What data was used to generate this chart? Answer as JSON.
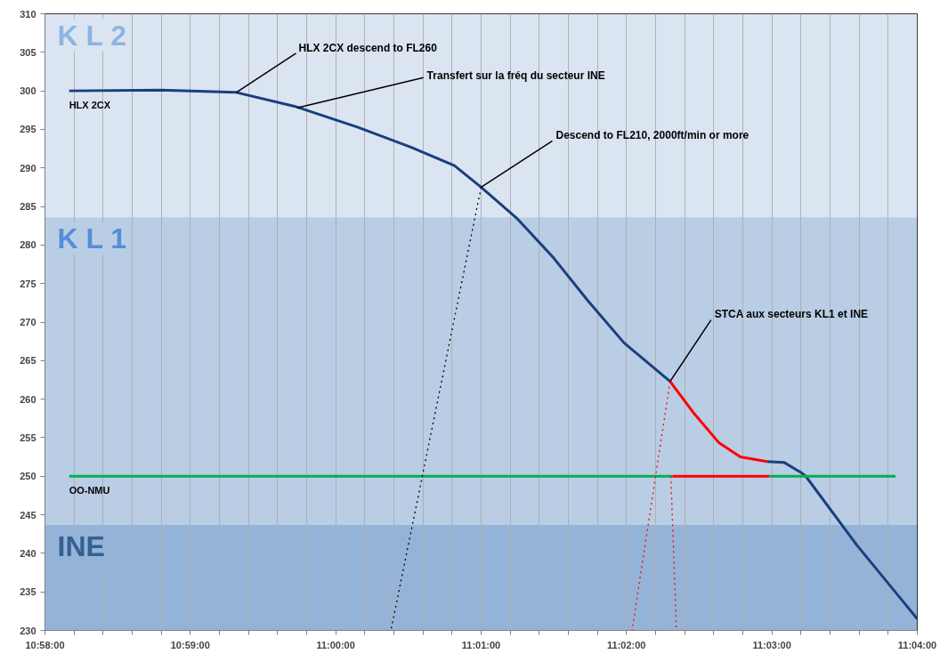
{
  "chart_data": {
    "type": "line",
    "xlim": [
      10.96667,
      11.06667
    ],
    "xticks": [
      {
        "value": 10.96667,
        "label": "10:58:00"
      },
      {
        "value": 10.97,
        "label": null
      },
      {
        "value": 10.97333,
        "label": null
      },
      {
        "value": 10.97667,
        "label": null
      },
      {
        "value": 10.98,
        "label": null
      },
      {
        "value": 10.98333,
        "label": "10:59:00"
      },
      {
        "value": 10.98667,
        "label": null
      },
      {
        "value": 10.99,
        "label": null
      },
      {
        "value": 10.99333,
        "label": null
      },
      {
        "value": 10.99667,
        "label": null
      },
      {
        "value": 11,
        "label": "11:00:00"
      },
      {
        "value": 11.00333,
        "label": null
      },
      {
        "value": 11.00667,
        "label": null
      },
      {
        "value": 11.01,
        "label": null
      },
      {
        "value": 11.01333,
        "label": null
      },
      {
        "value": 11.01667,
        "label": "11:01:00"
      },
      {
        "value": 11.02,
        "label": null
      },
      {
        "value": 11.02333,
        "label": null
      },
      {
        "value": 11.02667,
        "label": null
      },
      {
        "value": 11.03,
        "label": null
      },
      {
        "value": 11.03333,
        "label": "11:02:00"
      },
      {
        "value": 11.03667,
        "label": null
      },
      {
        "value": 11.04,
        "label": null
      },
      {
        "value": 11.04333,
        "label": null
      },
      {
        "value": 11.04667,
        "label": null
      },
      {
        "value": 11.05,
        "label": "11:03:00"
      },
      {
        "value": 11.05333,
        "label": null
      },
      {
        "value": 11.05667,
        "label": null
      },
      {
        "value": 11.06,
        "label": null
      },
      {
        "value": 11.06333,
        "label": null
      },
      {
        "value": 11.06667,
        "label": "11:04:00"
      }
    ],
    "ylim": [
      230,
      310
    ],
    "yticks": [
      230,
      235,
      240,
      245,
      250,
      255,
      260,
      265,
      270,
      275,
      280,
      285,
      290,
      295,
      300,
      305,
      310
    ],
    "grid": "x",
    "bands": [
      {
        "axis": "y",
        "from": 283.6,
        "to": 310,
        "label": "K L 2",
        "color": "#dbe5f1"
      },
      {
        "axis": "y",
        "from": 243.7,
        "to": 283.6,
        "label": "K L 1",
        "color": "#b9cde5"
      },
      {
        "axis": "y",
        "from": 230,
        "to": 243.7,
        "label": "INE",
        "color": "#95b3d7"
      }
    ],
    "series": [
      {
        "name": "HLX 2CX",
        "color": "#1a3f7e",
        "line_style": "solid",
        "x": [
          10.96944,
          10.98,
          10.98861,
          10.99528,
          11.0025,
          11.00861,
          11.01361,
          11.01667,
          11.02083,
          11.025,
          11.02889,
          11.03306,
          11.03833,
          11.04111,
          11.04389,
          11.04639,
          11.04944,
          11.05139,
          11.05333,
          11.05389,
          11.05972,
          11.06667
        ],
        "values": [
          300.0,
          300.1,
          299.8,
          298.0,
          295.3,
          292.7,
          290.3,
          287.5,
          283.4,
          278.3,
          272.8,
          267.3,
          262.3,
          null,
          null,
          null,
          251.9,
          251.8,
          250.5,
          250.0,
          241.1,
          231.5
        ]
      },
      {
        "color": "#ff0000",
        "line_style": "solid",
        "x": [
          11.03833,
          11.04111,
          11.04389,
          11.04639,
          11.04944
        ],
        "values": [
          262.3,
          258.1,
          254.4,
          252.5,
          251.9
        ]
      },
      {
        "name": "OO-NMU",
        "color": "#00b050",
        "line_style": "solid",
        "x": [
          10.96944,
          11.03861,
          11.044,
          11.04972,
          11.06417
        ],
        "values": [
          250,
          250,
          null,
          250,
          250
        ]
      },
      {
        "color": "#ff0000",
        "line_style": "solid",
        "x": [
          11.03861,
          11.04972
        ],
        "values": [
          250,
          250
        ]
      },
      {
        "color": "#000000",
        "line_style": "dotted",
        "x": [
          11.01667,
          11.00633
        ],
        "values": [
          287.5,
          230
        ]
      },
      {
        "color": "#ff0000",
        "line_style": "dotted",
        "x": [
          11.03833,
          11.03397
        ],
        "values": [
          262.3,
          230
        ]
      },
      {
        "color": "#ff0000",
        "line_style": "dotted",
        "x": [
          11.03842,
          11.03906
        ],
        "values": [
          250,
          230
        ]
      }
    ],
    "annotations": [
      {
        "text": "HLX 2CX descend to FL260",
        "x": 10.98861,
        "y": 299.8
      },
      {
        "text": "Transfert sur la fréq du secteur INE",
        "x": 10.99556,
        "y": 297.8
      },
      {
        "text": "Descend to FL210, 2000ft/min or more",
        "x": 11.01667,
        "y": 287.5
      },
      {
        "text": "STCA aux secteurs KL1 et INE",
        "x": 11.03833,
        "y": 262.3
      }
    ]
  }
}
